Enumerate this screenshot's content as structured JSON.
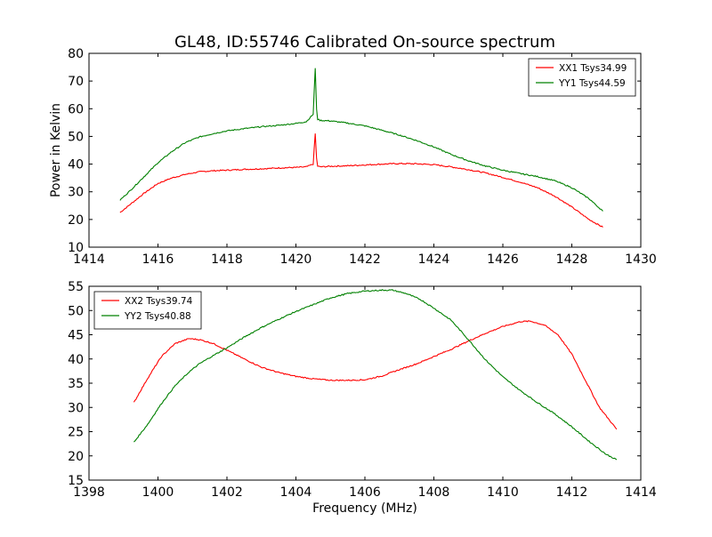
{
  "figure": {
    "title": "GL48, ID:55746 Calibrated On-source spectrum"
  },
  "chart_data": [
    {
      "type": "line",
      "title": "GL48, ID:55746 Calibrated On-source spectrum",
      "xlabel": "",
      "ylabel": "Power in Kelvin",
      "xlim": [
        1414,
        1430
      ],
      "ylim": [
        10,
        80
      ],
      "xticks": [
        1414,
        1416,
        1418,
        1420,
        1422,
        1424,
        1426,
        1428,
        1430
      ],
      "yticks": [
        10,
        20,
        30,
        40,
        50,
        60,
        70,
        80
      ],
      "legend_position": "top-right",
      "series": [
        {
          "name": "XX1 Tsys34.99",
          "color": "#ff0000",
          "x": [
            1414.9,
            1415.2,
            1415.6,
            1416.0,
            1416.4,
            1416.8,
            1417.2,
            1417.6,
            1418.0,
            1418.5,
            1419.0,
            1419.5,
            1420.0,
            1420.3,
            1420.5,
            1420.56,
            1420.6,
            1420.63,
            1420.7,
            1421.0,
            1421.5,
            1422.0,
            1422.5,
            1423.0,
            1423.5,
            1424.0,
            1424.5,
            1425.0,
            1425.5,
            1426.0,
            1426.5,
            1427.0,
            1427.5,
            1428.0,
            1428.5,
            1428.9
          ],
          "y": [
            22.5,
            25.5,
            29.5,
            33.0,
            35.0,
            36.3,
            37.2,
            37.6,
            37.8,
            38.1,
            38.3,
            38.6,
            38.8,
            39.0,
            40.0,
            51.0,
            42.0,
            39.3,
            39.0,
            39.2,
            39.4,
            39.7,
            40.0,
            40.2,
            40.1,
            39.8,
            39.0,
            38.0,
            36.8,
            35.2,
            33.5,
            31.5,
            28.5,
            24.5,
            20.0,
            17.2
          ]
        },
        {
          "name": "YY1 Tsys44.59",
          "color": "#008000",
          "x": [
            1414.9,
            1415.2,
            1415.6,
            1416.0,
            1416.4,
            1416.8,
            1417.2,
            1417.6,
            1418.0,
            1418.5,
            1419.0,
            1419.5,
            1420.0,
            1420.3,
            1420.5,
            1420.56,
            1420.6,
            1420.63,
            1420.7,
            1421.0,
            1421.5,
            1422.0,
            1422.5,
            1423.0,
            1423.5,
            1424.0,
            1424.5,
            1425.0,
            1425.5,
            1426.0,
            1426.5,
            1427.0,
            1427.5,
            1428.0,
            1428.5,
            1428.9
          ],
          "y": [
            27.0,
            30.5,
            35.5,
            40.5,
            44.5,
            47.8,
            49.8,
            51.0,
            52.0,
            52.8,
            53.5,
            54.0,
            54.7,
            55.3,
            58.0,
            74.5,
            60.0,
            56.2,
            55.8,
            55.6,
            54.8,
            53.8,
            52.2,
            50.5,
            48.5,
            46.2,
            43.5,
            41.2,
            39.3,
            37.8,
            36.6,
            35.5,
            34.0,
            31.5,
            27.5,
            23.0
          ]
        }
      ]
    },
    {
      "type": "line",
      "title": "",
      "xlabel": "Frequency (MHz)",
      "ylabel": "",
      "xlim": [
        1398,
        1414
      ],
      "ylim": [
        15,
        55
      ],
      "xticks": [
        1398,
        1400,
        1402,
        1404,
        1406,
        1408,
        1410,
        1412,
        1414
      ],
      "yticks": [
        15,
        20,
        25,
        30,
        35,
        40,
        45,
        50,
        55
      ],
      "legend_position": "top-left",
      "series": [
        {
          "name": "XX2 Tsys39.74",
          "color": "#ff0000",
          "x": [
            1399.3,
            1399.7,
            1400.1,
            1400.5,
            1400.9,
            1401.2,
            1401.6,
            1402.0,
            1402.5,
            1403.0,
            1403.5,
            1404.0,
            1404.5,
            1405.0,
            1405.5,
            1406.0,
            1406.5,
            1407.0,
            1407.5,
            1408.0,
            1408.5,
            1409.0,
            1409.5,
            1410.0,
            1410.5,
            1410.8,
            1411.2,
            1411.6,
            1412.0,
            1412.4,
            1412.8,
            1413.3
          ],
          "y": [
            31.0,
            36.0,
            40.5,
            43.2,
            44.2,
            44.0,
            43.2,
            41.8,
            40.0,
            38.3,
            37.2,
            36.4,
            35.9,
            35.6,
            35.6,
            35.7,
            36.5,
            37.8,
            39.0,
            40.5,
            42.0,
            43.7,
            45.3,
            46.7,
            47.7,
            47.8,
            47.0,
            45.0,
            41.0,
            35.5,
            30.0,
            25.5
          ]
        },
        {
          "name": "YY2 Tsys40.88",
          "color": "#008000",
          "x": [
            1399.3,
            1399.7,
            1400.1,
            1400.5,
            1400.9,
            1401.2,
            1401.6,
            1402.0,
            1402.5,
            1403.0,
            1403.5,
            1404.0,
            1404.5,
            1405.0,
            1405.5,
            1406.0,
            1406.5,
            1406.8,
            1407.2,
            1407.6,
            1408.0,
            1408.5,
            1409.0,
            1409.5,
            1410.0,
            1410.5,
            1411.0,
            1411.5,
            1412.0,
            1412.5,
            1413.0,
            1413.3
          ],
          "y": [
            22.8,
            26.5,
            30.8,
            34.5,
            37.3,
            39.0,
            40.7,
            42.3,
            44.5,
            46.5,
            48.2,
            49.8,
            51.2,
            52.6,
            53.5,
            54.0,
            54.2,
            54.2,
            53.5,
            52.3,
            50.5,
            48.0,
            44.0,
            39.8,
            36.3,
            33.5,
            31.0,
            28.7,
            26.0,
            23.0,
            20.3,
            19.2
          ]
        }
      ]
    }
  ]
}
